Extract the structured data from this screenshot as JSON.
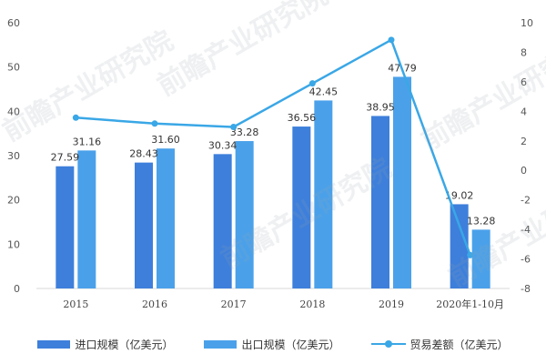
{
  "chart_data": {
    "type": "bar",
    "categories": [
      "2015",
      "2016",
      "2017",
      "2018",
      "2019",
      "2020年1-10月"
    ],
    "series": [
      {
        "name": "进口规模（亿美元）",
        "values": [
          27.59,
          28.43,
          30.34,
          36.56,
          38.95,
          19.02
        ],
        "color": "#3d7fdb"
      },
      {
        "name": "出口规模（亿美元）",
        "values": [
          31.16,
          31.6,
          33.28,
          42.45,
          47.79,
          13.28
        ],
        "color": "#4aa1ea"
      },
      {
        "name": "贸易差额（亿美元）",
        "type": "line",
        "axis": "right",
        "values": [
          3.57,
          3.17,
          2.94,
          5.89,
          8.84,
          -5.74
        ],
        "color": "#3aa7e6"
      }
    ],
    "ylim_left": [
      0,
      60
    ],
    "yticks_left": [
      0,
      10,
      20,
      30,
      40,
      50,
      60
    ],
    "ylim_right": [
      -8,
      10
    ],
    "yticks_right": [
      -8,
      -6,
      -4,
      -2,
      0,
      2,
      4,
      6,
      8,
      10
    ],
    "legend_position": "bottom",
    "grid": false
  },
  "watermark": "前瞻产业研究院"
}
